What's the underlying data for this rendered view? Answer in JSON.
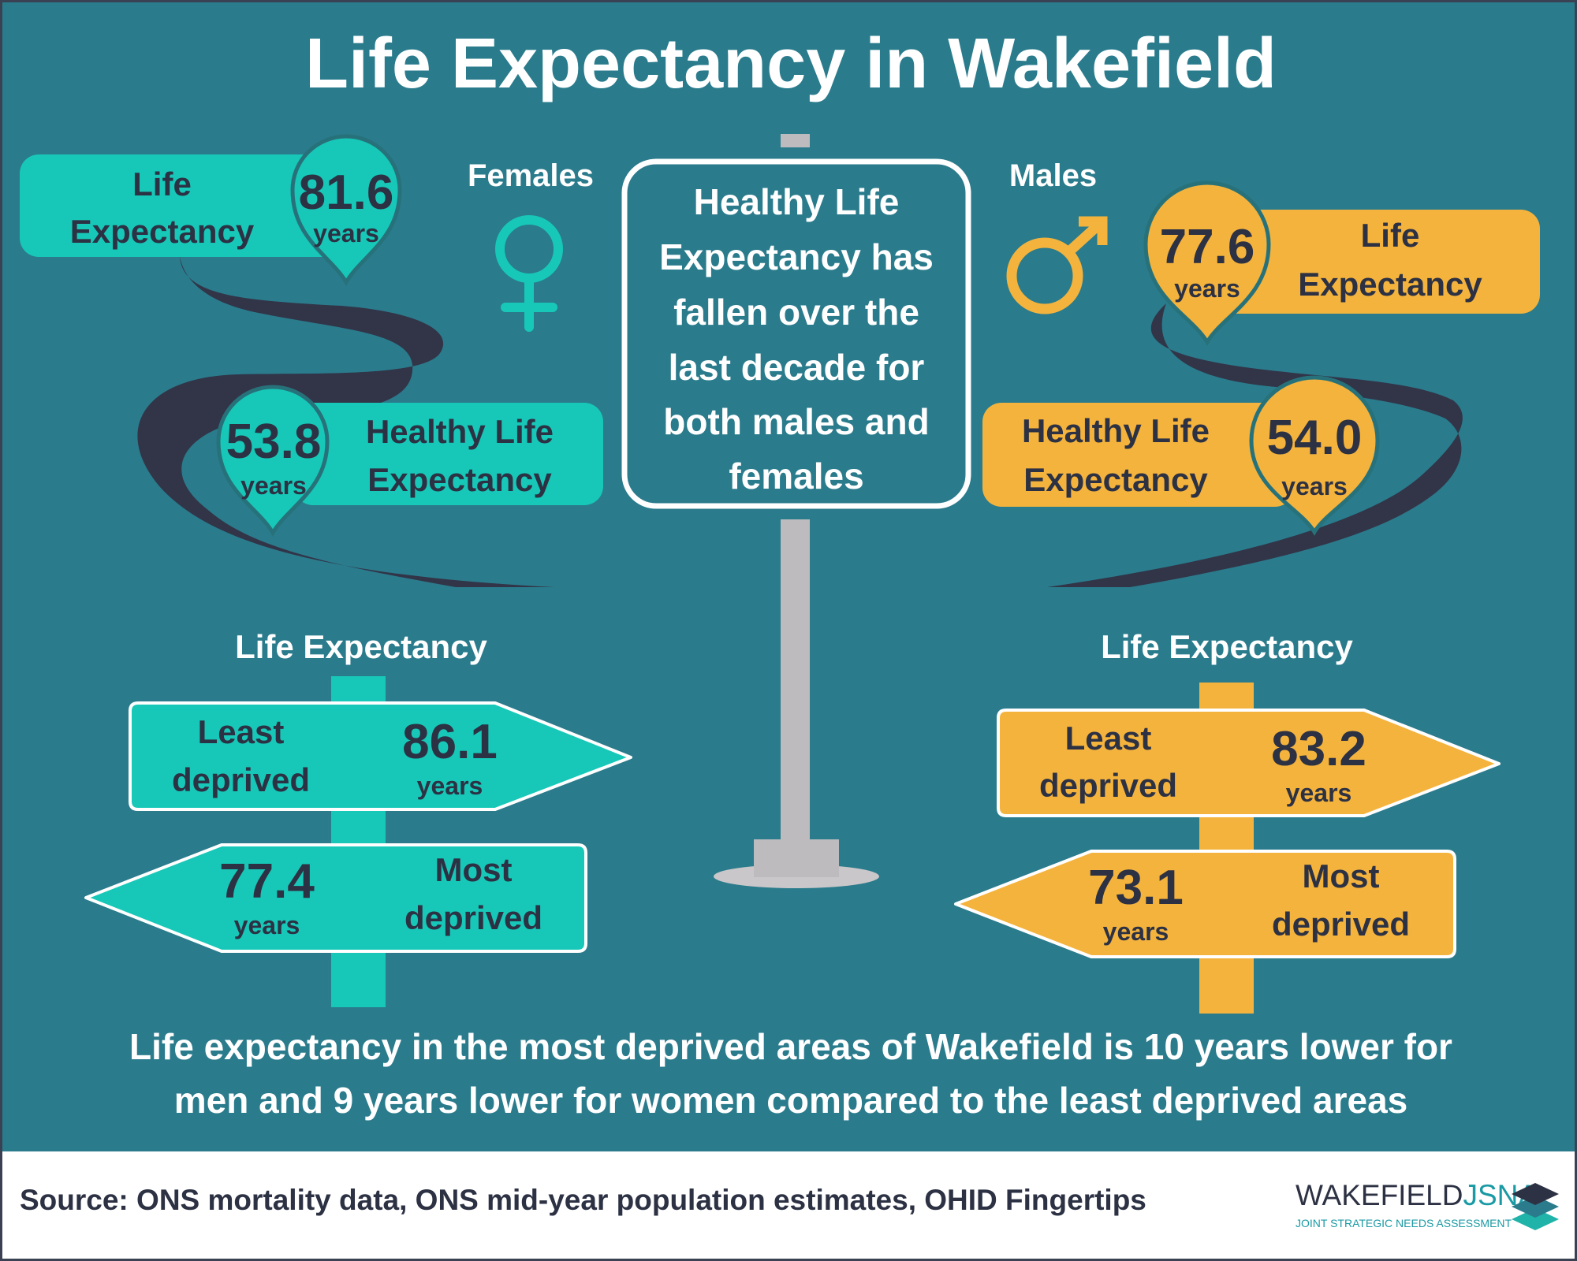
{
  "title": "Life Expectancy in Wakefield",
  "colors": {
    "background": "#2a7b8c",
    "female": "#17c8b8",
    "male": "#f4b33d",
    "road": "#323447",
    "text_dark": "#2c3143",
    "post": "#bdbbbd"
  },
  "females": {
    "heading": "Females",
    "icon": "female-symbol-icon",
    "life_expectancy": {
      "label_line1": "Life",
      "label_line2": "Expectancy",
      "value": "81.6",
      "unit": "years"
    },
    "healthy_life_expectancy": {
      "label_line1": "Healthy Life",
      "label_line2": "Expectancy",
      "value": "53.8",
      "unit": "years"
    },
    "deprivation": {
      "heading": "Life Expectancy",
      "least": {
        "label_line1": "Least",
        "label_line2": "deprived",
        "value": "86.1",
        "unit": "years"
      },
      "most": {
        "label_line1": "Most",
        "label_line2": "deprived",
        "value": "77.4",
        "unit": "years"
      }
    }
  },
  "males": {
    "heading": "Males",
    "icon": "male-symbol-icon",
    "life_expectancy": {
      "label_line1": "Life",
      "label_line2": "Expectancy",
      "value": "77.6",
      "unit": "years"
    },
    "healthy_life_expectancy": {
      "label_line1": "Healthy Life",
      "label_line2": "Expectancy",
      "value": "54.0",
      "unit": "years"
    },
    "deprivation": {
      "heading": "Life Expectancy",
      "least": {
        "label_line1": "Least",
        "label_line2": "deprived",
        "value": "83.2",
        "unit": "years"
      },
      "most": {
        "label_line1": "Most",
        "label_line2": "deprived",
        "value": "73.1",
        "unit": "years"
      }
    }
  },
  "sign": {
    "lines": [
      "Healthy Life",
      "Expectancy has",
      "fallen over the",
      "last decade for",
      "both males and",
      "females"
    ]
  },
  "summary": {
    "line1": "Life expectancy in the most deprived areas of Wakefield is 10 years lower for",
    "line2": "men and 9 years lower for women compared to the least deprived areas"
  },
  "footer": {
    "source": "Source: ONS mortality data, ONS mid-year population estimates, OHID Fingertips",
    "logo_word1": "WAKEFIELD",
    "logo_word2": "JSNA",
    "logo_subtitle": "JOINT STRATEGIC NEEDS ASSESSMENT",
    "logo_icon": "stacked-layers-icon"
  }
}
